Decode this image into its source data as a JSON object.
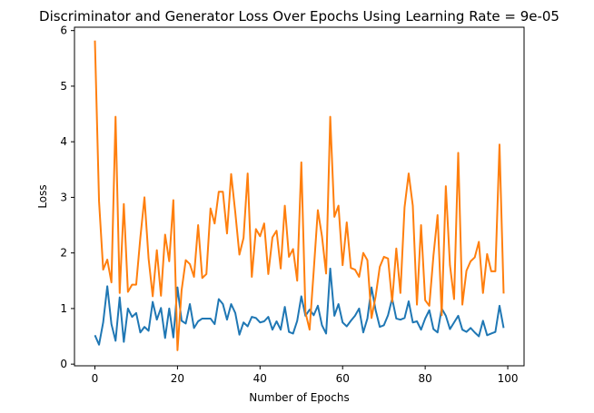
{
  "chart_data": {
    "type": "line",
    "title": "Discriminator and Generator Loss Over Epochs Using Learning Rate = 9e-05",
    "xlabel": "Number of Epochs",
    "ylabel": "Loss",
    "xlim": [
      -4.95,
      103.95
    ],
    "ylim": [
      -0.03,
      6.06
    ],
    "xticks": [
      0,
      20,
      40,
      60,
      80,
      100
    ],
    "yticks": [
      0,
      1,
      2,
      3,
      4,
      5,
      6
    ],
    "grid": false,
    "legend": "none",
    "x": [
      0,
      1,
      2,
      3,
      4,
      5,
      6,
      7,
      8,
      9,
      10,
      11,
      12,
      13,
      14,
      15,
      16,
      17,
      18,
      19,
      20,
      21,
      22,
      23,
      24,
      25,
      26,
      27,
      28,
      29,
      30,
      31,
      32,
      33,
      34,
      35,
      36,
      37,
      38,
      39,
      40,
      41,
      42,
      43,
      44,
      45,
      46,
      47,
      48,
      49,
      50,
      51,
      52,
      53,
      54,
      55,
      56,
      57,
      58,
      59,
      60,
      61,
      62,
      63,
      64,
      65,
      66,
      67,
      68,
      69,
      70,
      71,
      72,
      73,
      74,
      75,
      76,
      77,
      78,
      79,
      80,
      81,
      82,
      83,
      84,
      85,
      86,
      87,
      88,
      89,
      90,
      91,
      92,
      93,
      94,
      95,
      96,
      97,
      98,
      99
    ],
    "series": [
      {
        "color": "#1f77b4",
        "values": [
          0.52,
          0.35,
          0.75,
          1.4,
          0.72,
          0.42,
          1.2,
          0.4,
          1.0,
          0.85,
          0.92,
          0.57,
          0.67,
          0.6,
          1.12,
          0.8,
          1.01,
          0.47,
          1.0,
          0.48,
          1.38,
          0.78,
          0.73,
          1.08,
          0.65,
          0.77,
          0.82,
          0.82,
          0.82,
          0.72,
          1.17,
          1.08,
          0.8,
          1.08,
          0.92,
          0.53,
          0.75,
          0.68,
          0.85,
          0.83,
          0.75,
          0.77,
          0.85,
          0.62,
          0.77,
          0.62,
          1.03,
          0.58,
          0.55,
          0.78,
          1.22,
          0.87,
          0.98,
          0.88,
          1.05,
          0.7,
          0.55,
          1.72,
          0.87,
          1.08,
          0.75,
          0.68,
          0.78,
          0.87,
          1.0,
          0.57,
          0.82,
          1.38,
          0.97,
          0.67,
          0.7,
          0.88,
          1.18,
          0.82,
          0.8,
          0.83,
          1.13,
          0.75,
          0.77,
          0.62,
          0.82,
          0.97,
          0.63,
          0.57,
          1.0,
          0.87,
          0.63,
          0.75,
          0.87,
          0.62,
          0.58,
          0.65,
          0.57,
          0.5,
          0.78,
          0.52,
          0.55,
          0.58,
          1.05,
          0.65
        ]
      },
      {
        "color": "#ff7f0e",
        "values": [
          5.82,
          2.93,
          1.7,
          1.88,
          1.47,
          4.45,
          1.28,
          2.88,
          1.3,
          1.43,
          1.43,
          2.27,
          3.0,
          1.9,
          1.22,
          2.05,
          1.23,
          2.33,
          1.85,
          2.95,
          0.25,
          1.33,
          1.87,
          1.8,
          1.57,
          2.5,
          1.55,
          1.62,
          2.8,
          2.53,
          3.1,
          3.1,
          2.35,
          3.42,
          2.73,
          1.97,
          2.27,
          3.43,
          1.57,
          2.43,
          2.3,
          2.53,
          1.62,
          2.28,
          2.4,
          1.72,
          2.85,
          1.93,
          2.07,
          1.5,
          3.63,
          0.93,
          0.62,
          1.68,
          2.77,
          2.3,
          1.63,
          4.45,
          2.65,
          2.85,
          1.78,
          2.55,
          1.73,
          1.7,
          1.57,
          2.0,
          1.87,
          0.83,
          1.22,
          1.75,
          1.93,
          1.9,
          1.12,
          2.08,
          1.28,
          2.82,
          3.43,
          2.85,
          1.07,
          2.5,
          1.15,
          1.05,
          1.95,
          2.68,
          0.88,
          3.2,
          1.78,
          1.17,
          3.8,
          1.07,
          1.68,
          1.85,
          1.92,
          2.2,
          1.28,
          1.98,
          1.67,
          1.67,
          3.95,
          1.27
        ]
      }
    ]
  }
}
